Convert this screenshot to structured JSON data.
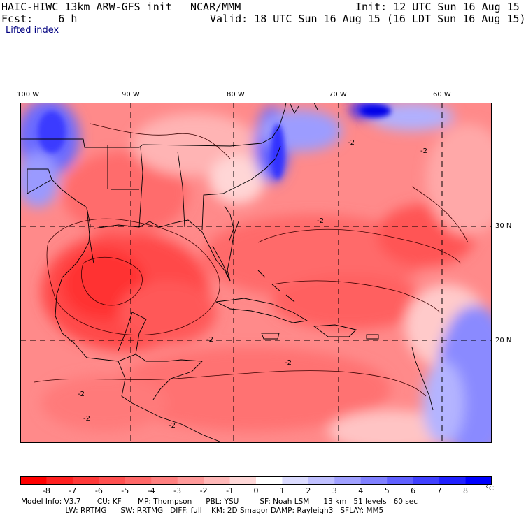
{
  "header": {
    "model": "HAIC-HIWC 13km ARW-GFS init",
    "org": "NCAR/MMM",
    "init": "Init: 12 UTC Sun 16 Aug 15",
    "fcst": "Fcst:    6 h",
    "valid": "Valid: 18 UTC Sun 16 Aug 15 (16 LDT Sun 16 Aug 15)",
    "field": "Lifted index"
  },
  "map": {
    "lon_labels": [
      "100 W",
      "90 W",
      "80 W",
      "70 W",
      "60 W"
    ],
    "lat_labels": [
      "30 N",
      "20 N"
    ],
    "contour_labels": [
      "-2",
      "-2",
      "-2",
      "-2",
      "-2",
      "-2",
      "-2",
      "-2"
    ]
  },
  "colorbar": {
    "ticks": [
      "-8",
      "-7",
      "-6",
      "-5",
      "-4",
      "-3",
      "-2",
      "-1",
      "0",
      "1",
      "2",
      "3",
      "4",
      "5",
      "6",
      "7",
      "8"
    ],
    "unit": "°C",
    "colors": [
      "#ff0000",
      "#ff2020",
      "#ff3a3a",
      "#ff5050",
      "#ff6868",
      "#ff8080",
      "#ff9a9a",
      "#ffb8b8",
      "#ffd8d8",
      "#ffffff",
      "#dcdcff",
      "#c0c0ff",
      "#a0a0ff",
      "#8080ff",
      "#6060ff",
      "#4040ff",
      "#2020ff",
      "#0000ff"
    ]
  },
  "footer": {
    "line1": "Model Info: V3.7       CU: KF       MP: Thompson      PBL: YSU         SF: Noah LSM      13 km   51 levels   60 sec",
    "line2": "                   LW: RRTMG      SW: RRTMG   DIFF: full    KM: 2D Smagor DAMP: Rayleigh3   SFLAY: MM5"
  }
}
